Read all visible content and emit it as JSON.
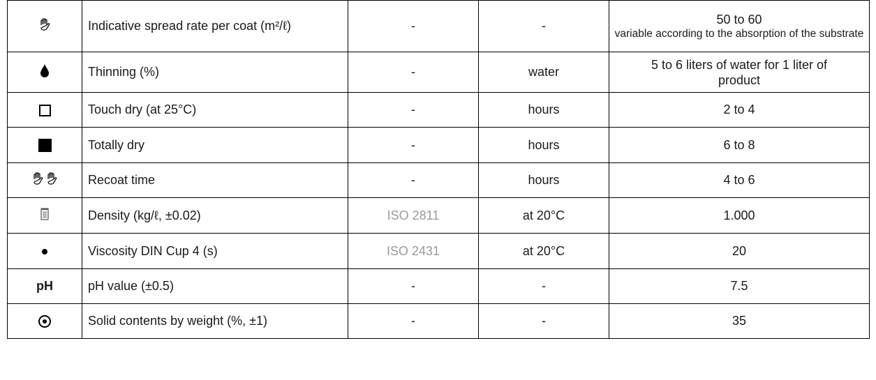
{
  "rows": [
    {
      "icon": "hand-icon",
      "property": "Indicative spread rate per coat (m²/ℓ)",
      "standard": "-",
      "unit": "-",
      "value_main": "50 to 60",
      "value_sub": "variable according to the absorption of the substrate"
    },
    {
      "icon": "drop-icon",
      "property": "Thinning (%)",
      "standard": "-",
      "unit": "water",
      "value_main": "5 to 6 liters of water for 1 liter of product"
    },
    {
      "icon": "empty-square-icon",
      "property": "Touch dry (at 25°C)",
      "standard": "-",
      "unit": "hours",
      "value_main": "2 to 4"
    },
    {
      "icon": "filled-square-icon",
      "property": "Totally dry",
      "standard": "-",
      "unit": "hours",
      "value_main": "6 to 8"
    },
    {
      "icon": "double-hand-icon",
      "property": "Recoat time",
      "standard": "-",
      "unit": "hours",
      "value_main": "4 to 6"
    },
    {
      "icon": "canister-icon",
      "property": "Density (kg/ℓ, ±0.02)",
      "standard": "ISO 2811",
      "unit": "at 20°C",
      "value_main": "1.000"
    },
    {
      "icon": "dot-icon",
      "property": "Viscosity DIN Cup 4 (s)",
      "standard": "ISO 2431",
      "unit": "at 20°C",
      "value_main": "20"
    },
    {
      "icon": "ph-icon",
      "icon_text": "pH",
      "property": "pH value (±0.5)",
      "standard": "-",
      "unit": "-",
      "value_main": "7.5"
    },
    {
      "icon": "target-icon",
      "property": "Solid contents by weight (%, ±1)",
      "standard": "-",
      "unit": "-",
      "value_main": "35"
    }
  ]
}
